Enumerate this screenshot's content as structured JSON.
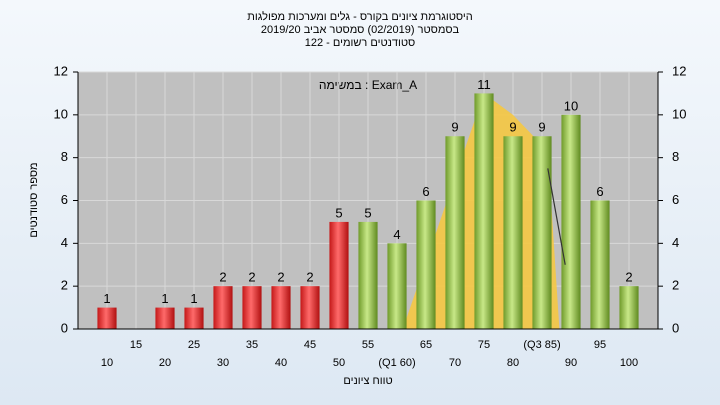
{
  "chart_data": {
    "type": "bar",
    "title_lines": [
      "היסטוגרמת ציונים בקורס - גלים ומערכות מפולגות",
      "בסמסטר  (02/2019)  סמסטר אביב 2019/20",
      "סטודנטים רשומים - 122"
    ],
    "annotation": "במשימה : Exam_A",
    "ylabel": "מספר סטודנטים",
    "xlabel": "טווח ציונים",
    "categories": [
      "10",
      "15",
      "20",
      "25",
      "30",
      "35",
      "40",
      "45",
      "50",
      "55",
      "(Q1 60)",
      "65",
      "70",
      "75",
      "80",
      "(Q3 85)",
      "90",
      "95",
      "100"
    ],
    "values": [
      1,
      0,
      1,
      1,
      2,
      2,
      2,
      2,
      5,
      5,
      4,
      6,
      9,
      11,
      9,
      9,
      10,
      6,
      2
    ],
    "colors": [
      "red",
      "red",
      "red",
      "red",
      "red",
      "red",
      "red",
      "red",
      "red",
      "green",
      "green",
      "green",
      "green",
      "green",
      "green",
      "green",
      "green",
      "green",
      "green"
    ],
    "ylim": [
      0,
      12
    ],
    "yticks": [
      0,
      2,
      4,
      6,
      8,
      10,
      12
    ],
    "grid": true,
    "area": {
      "color": "#f5c842",
      "x": [
        61,
        75,
        80,
        86,
        88
      ],
      "y": [
        0,
        11,
        10,
        8.3,
        0
      ]
    },
    "line": {
      "color": "#333333",
      "x": [
        86,
        89
      ],
      "y": [
        7.5,
        3
      ]
    }
  }
}
